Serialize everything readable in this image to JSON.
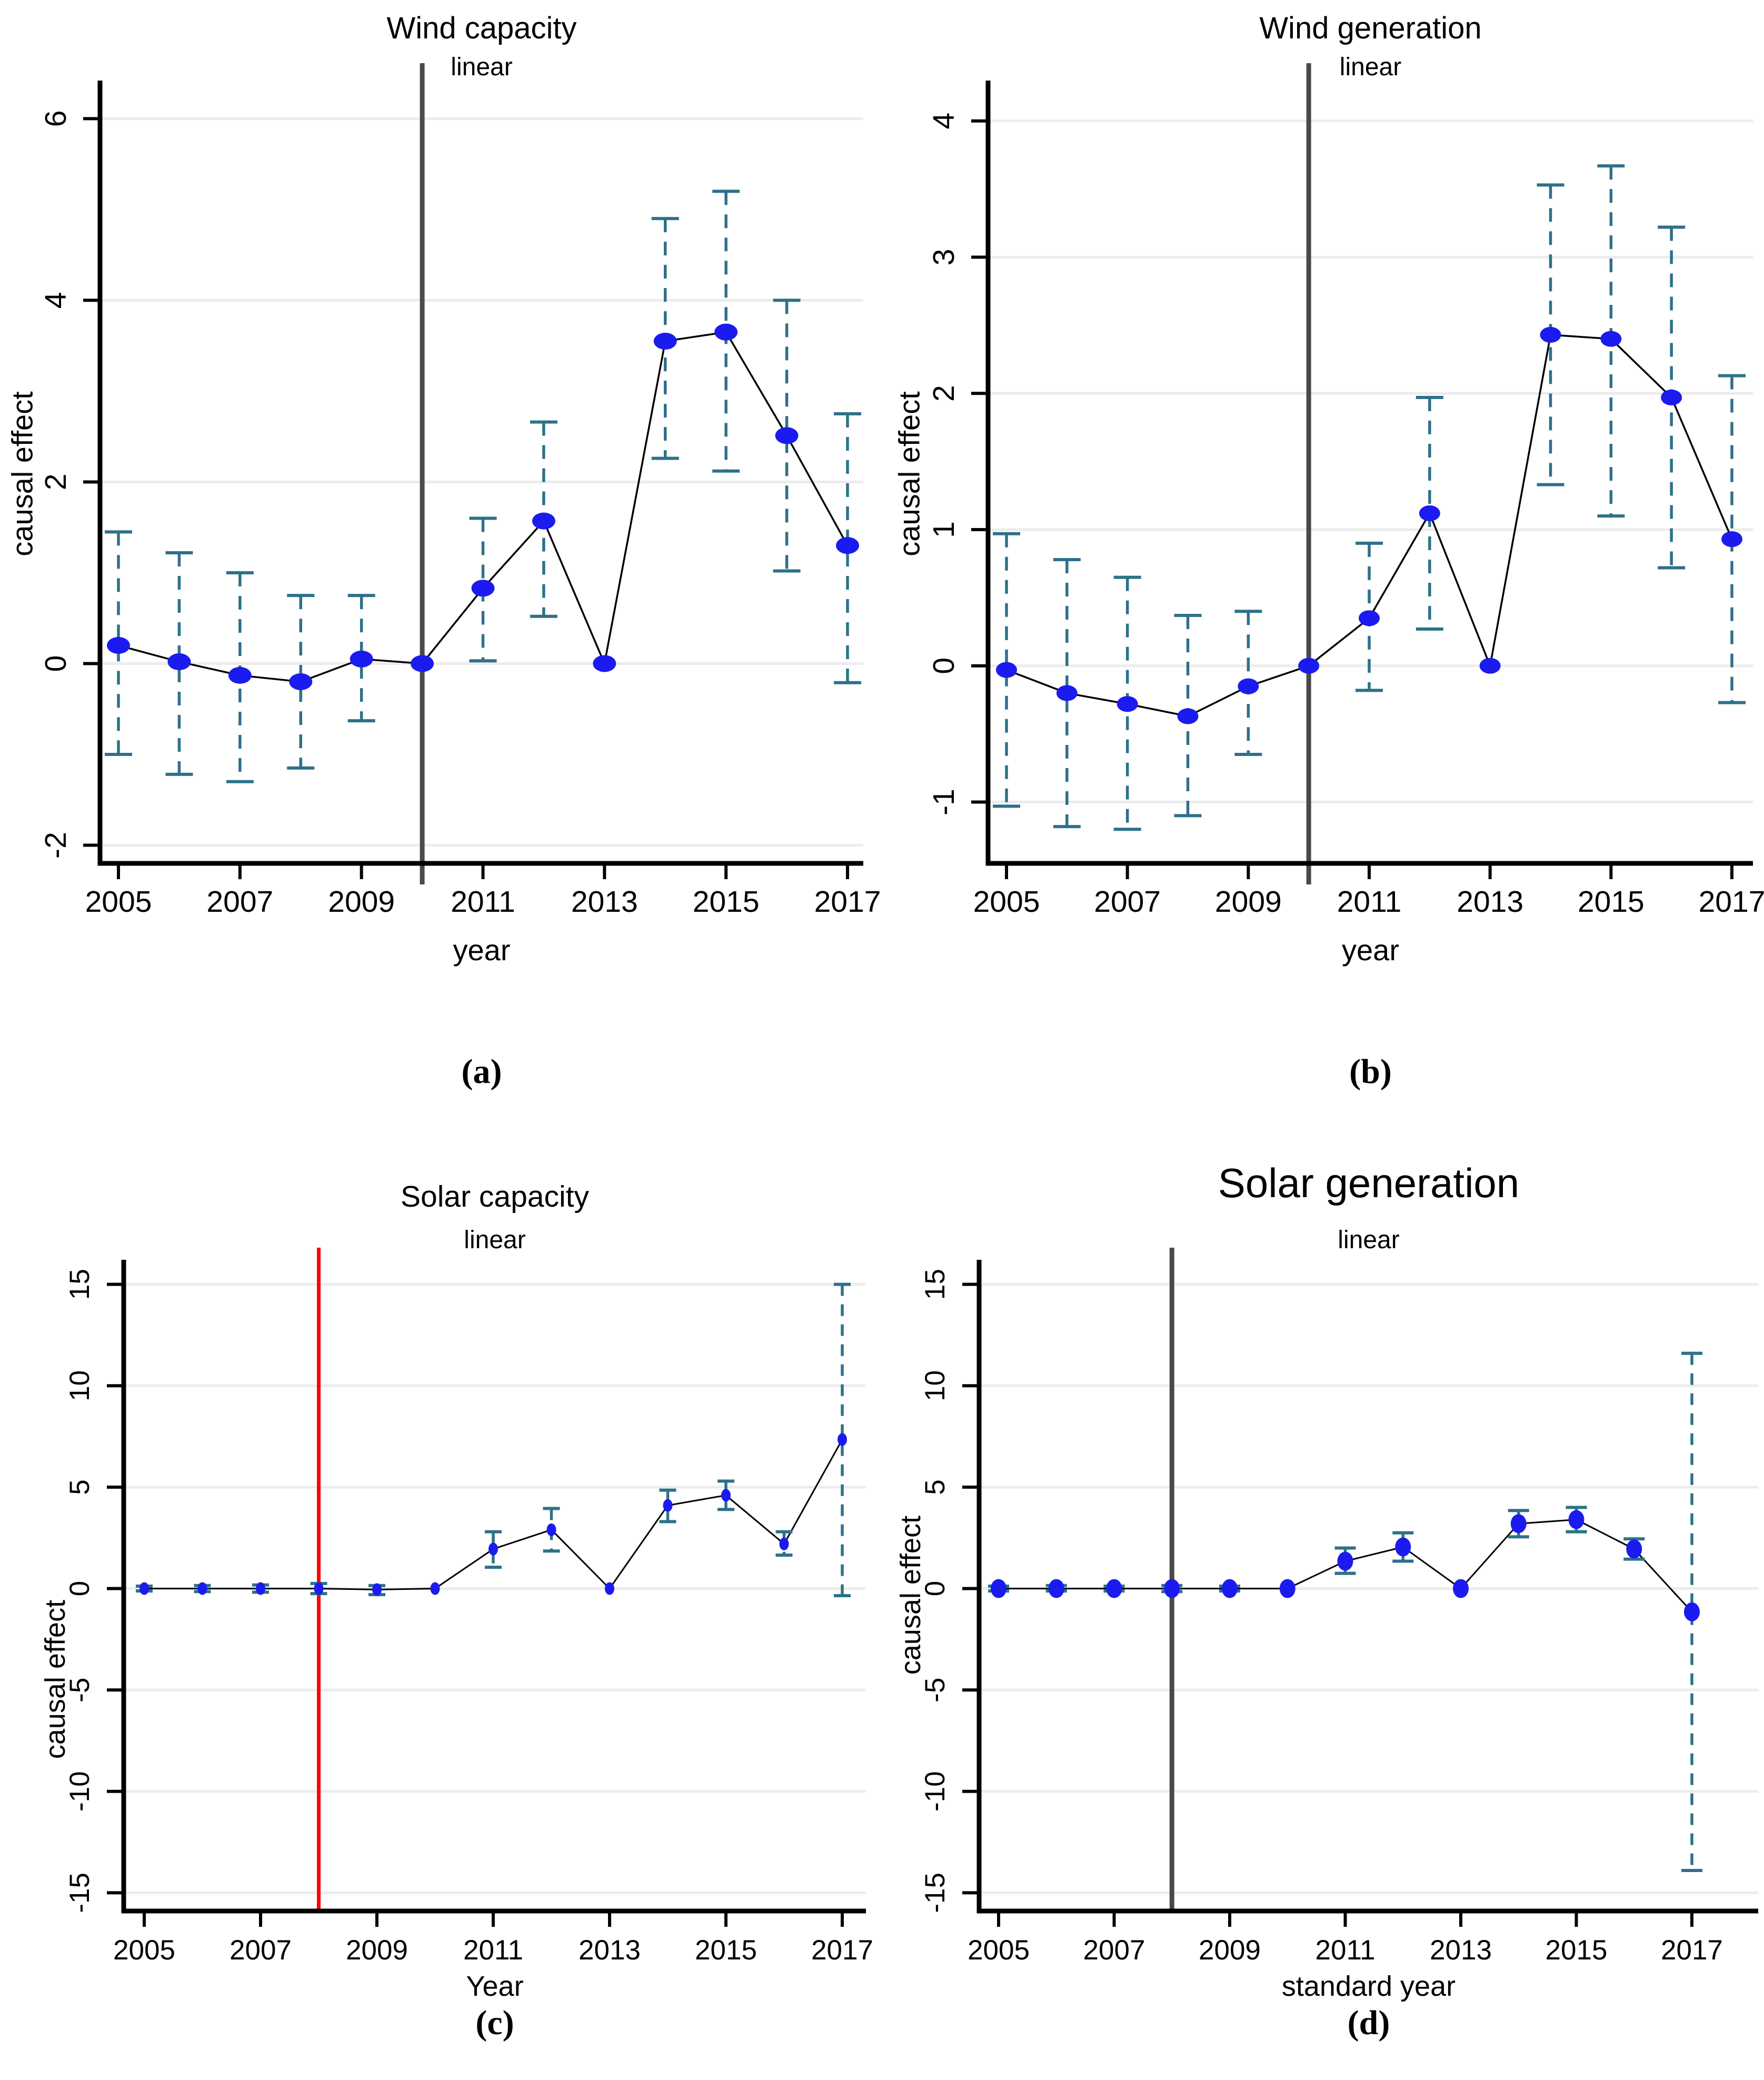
{
  "figure": {
    "background": "#ffffff"
  },
  "chart_data": [
    {
      "type": "line",
      "tag": "(a)",
      "title": "Wind capacity",
      "subtitle": "linear",
      "xlabel": "year",
      "ylabel": "causal effect",
      "x": [
        2005,
        2006,
        2007,
        2008,
        2009,
        2010,
        2011,
        2012,
        2013,
        2014,
        2015,
        2016,
        2017
      ],
      "xticks": [
        2005,
        2007,
        2009,
        2011,
        2013,
        2015,
        2017
      ],
      "yticks": [
        -2,
        0,
        2,
        4,
        6
      ],
      "ylim": [
        -2.2,
        6.35
      ],
      "grid": true,
      "legend": "none",
      "series": [
        {
          "name": "causal effect",
          "values": [
            0.2,
            0.02,
            -0.13,
            -0.2,
            0.05,
            0,
            0.83,
            1.57,
            0,
            3.55,
            3.65,
            2.51,
            1.3
          ]
        }
      ],
      "ci_low": [
        -1.0,
        -1.22,
        -1.3,
        -1.15,
        -0.63,
        null,
        0.03,
        0.52,
        null,
        2.26,
        2.12,
        1.02,
        -0.21
      ],
      "ci_high": [
        1.45,
        1.22,
        1.0,
        0.75,
        0.75,
        null,
        1.6,
        2.66,
        null,
        4.9,
        5.2,
        4.0,
        2.75
      ],
      "vline": {
        "x": 2010,
        "color": "#4a4a4a"
      },
      "colors": {
        "point": "#1b1bf0",
        "ci": "#2d7189",
        "line": "#000000",
        "grid": "#ececec",
        "axis": "#000000"
      }
    },
    {
      "type": "line",
      "tag": "(b)",
      "title": "Wind generation",
      "subtitle": "linear",
      "xlabel": "year",
      "ylabel": "causal effect",
      "x": [
        2005,
        2006,
        2007,
        2008,
        2009,
        2010,
        2011,
        2012,
        2013,
        2014,
        2015,
        2016,
        2017
      ],
      "xticks": [
        2005,
        2007,
        2009,
        2011,
        2013,
        2015,
        2017
      ],
      "yticks": [
        -1,
        0,
        1,
        2,
        3,
        4
      ],
      "ylim": [
        -1.45,
        4.25
      ],
      "grid": true,
      "legend": "none",
      "series": [
        {
          "name": "causal effect",
          "values": [
            -0.03,
            -0.2,
            -0.28,
            -0.37,
            -0.15,
            0,
            0.35,
            1.12,
            0,
            2.43,
            2.4,
            1.97,
            0.93
          ]
        }
      ],
      "ci_low": [
        -1.03,
        -1.18,
        -1.2,
        -1.1,
        -0.65,
        null,
        -0.18,
        0.27,
        null,
        1.33,
        1.1,
        0.72,
        -0.27
      ],
      "ci_high": [
        0.97,
        0.78,
        0.65,
        0.37,
        0.4,
        null,
        0.9,
        1.97,
        null,
        3.53,
        3.67,
        3.22,
        2.13
      ],
      "vline": {
        "x": 2010,
        "color": "#4a4a4a"
      },
      "colors": {
        "point": "#1b1bf0",
        "ci": "#2d7189",
        "line": "#000000",
        "grid": "#ececec",
        "axis": "#000000"
      }
    },
    {
      "type": "line",
      "tag": "(c)",
      "title": "Solar capacity",
      "subtitle": "linear",
      "xlabel": "Year",
      "ylabel": "causal effect",
      "x": [
        2005,
        2006,
        2007,
        2008,
        2009,
        2010,
        2011,
        2012,
        2013,
        2014,
        2015,
        2016,
        2017
      ],
      "xticks": [
        2005,
        2007,
        2009,
        2011,
        2013,
        2015,
        2017
      ],
      "yticks": [
        -15,
        -10,
        -5,
        0,
        5,
        10,
        15
      ],
      "ylim": [
        -15.9,
        15.9
      ],
      "grid": true,
      "legend": "none",
      "series": [
        {
          "name": "causal effect",
          "values": [
            0,
            0,
            0,
            0,
            -0.05,
            0,
            1.95,
            2.9,
            0,
            4.1,
            4.6,
            2.2,
            7.35
          ]
        }
      ],
      "ci_low": [
        -0.12,
        -0.15,
        -0.18,
        -0.25,
        -0.3,
        null,
        1.05,
        1.85,
        null,
        3.3,
        3.9,
        1.65,
        -0.35
      ],
      "ci_high": [
        0.12,
        0.15,
        0.18,
        0.25,
        0.15,
        null,
        2.8,
        3.95,
        null,
        4.85,
        5.3,
        2.8,
        15.0
      ],
      "vline": {
        "x": 2008,
        "color": "#fe0000"
      },
      "colors": {
        "point": "#1b1bf0",
        "ci": "#2d7189",
        "line": "#000000",
        "grid": "#ececec",
        "axis": "#000000"
      }
    },
    {
      "type": "line",
      "tag": "(d)",
      "title": "Solar generation",
      "subtitle": "linear",
      "xlabel": "standard year",
      "ylabel": "causal effect",
      "x": [
        2005,
        2006,
        2007,
        2008,
        2009,
        2010,
        2011,
        2012,
        2013,
        2014,
        2015,
        2016,
        2017
      ],
      "xticks": [
        2005,
        2007,
        2009,
        2011,
        2013,
        2015,
        2017
      ],
      "yticks": [
        -15,
        -10,
        -5,
        0,
        5,
        10,
        15
      ],
      "ylim": [
        -15.9,
        15.9
      ],
      "grid": true,
      "legend": "none",
      "series": [
        {
          "name": "causal effect",
          "values": [
            0,
            0,
            0,
            0,
            0,
            0,
            1.35,
            2.05,
            0,
            3.2,
            3.4,
            1.95,
            -1.15
          ]
        }
      ],
      "ci_low": [
        -0.12,
        -0.12,
        -0.12,
        -0.15,
        -0.12,
        null,
        0.75,
        1.35,
        null,
        2.55,
        2.8,
        1.45,
        -13.9
      ],
      "ci_high": [
        0.12,
        0.15,
        0.12,
        0.15,
        0.12,
        null,
        2.0,
        2.75,
        null,
        3.85,
        4.0,
        2.45,
        11.6
      ],
      "vline": {
        "x": 2008,
        "color": "#4a4a4a"
      },
      "colors": {
        "point": "#1b1bf0",
        "ci": "#2d7189",
        "line": "#000000",
        "grid": "#ececec",
        "axis": "#000000"
      }
    }
  ]
}
